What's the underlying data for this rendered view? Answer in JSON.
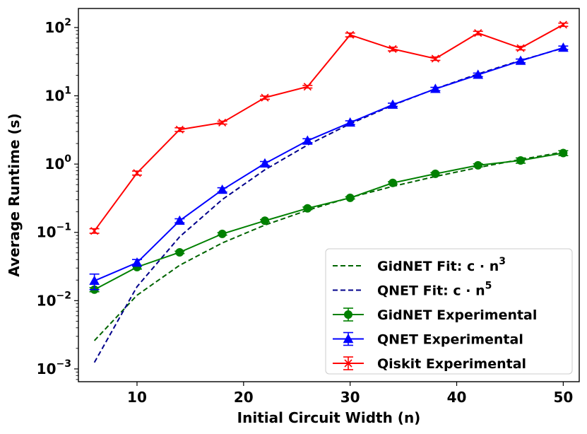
{
  "chart_data": {
    "type": "line",
    "title": "",
    "xlabel": "Initial Circuit Width (n)",
    "ylabel": "Average Runtime (s)",
    "yscale": "log",
    "xlim": [
      4.5,
      51.5
    ],
    "ylim": [
      0.00065,
      190
    ],
    "xticks": [
      10,
      20,
      30,
      40,
      50
    ],
    "yticks": [
      {
        "value": 0.001,
        "base": "10",
        "exp": "−3"
      },
      {
        "value": 0.01,
        "base": "10",
        "exp": "−2"
      },
      {
        "value": 0.1,
        "base": "10",
        "exp": "−1"
      },
      {
        "value": 1,
        "base": "10",
        "exp": "0"
      },
      {
        "value": 10,
        "base": "10",
        "exp": "1"
      },
      {
        "value": 100,
        "base": "10",
        "exp": "2"
      }
    ],
    "legend_position": "lower-right",
    "series": [
      {
        "name": "GidNET Fit",
        "legend_main": "GidNET Fit: c",
        "legend_dot": "·",
        "legend_n": "n",
        "legend_exp": "3",
        "kind": "fit",
        "color": "#006400",
        "coef": 1.2e-05,
        "power": 3,
        "x": [
          6,
          10,
          14,
          18,
          22,
          26,
          30,
          34,
          38,
          42,
          46,
          50
        ]
      },
      {
        "name": "QNET Fit",
        "legend_main": "QNET Fit: c",
        "legend_dot": "·",
        "legend_n": "n",
        "legend_exp": "5",
        "kind": "fit",
        "color": "#00008b",
        "coef": 1.6e-07,
        "power": 5,
        "x": [
          6,
          10,
          14,
          18,
          22,
          26,
          30,
          34,
          38,
          42,
          46,
          50
        ]
      },
      {
        "name": "GidNET Experimental",
        "kind": "experimental",
        "marker": "circle",
        "color": "#008000",
        "x": [
          6,
          10,
          14,
          18,
          22,
          26,
          30,
          34,
          38,
          42,
          46,
          50
        ],
        "y": [
          0.0145,
          0.031,
          0.051,
          0.095,
          0.148,
          0.225,
          0.32,
          0.53,
          0.72,
          0.96,
          1.13,
          1.45
        ],
        "err": [
          0.001,
          0.002,
          0.002,
          0.004,
          0.006,
          0.01,
          0.012,
          0.02,
          0.03,
          0.05,
          0.1,
          0.12
        ]
      },
      {
        "name": "QNET Experimental",
        "kind": "experimental",
        "marker": "triangle",
        "color": "#0000ff",
        "x": [
          6,
          10,
          14,
          18,
          22,
          26,
          30,
          34,
          38,
          42,
          46,
          50
        ],
        "y": [
          0.0195,
          0.036,
          0.148,
          0.42,
          1.02,
          2.2,
          4.05,
          7.4,
          12.6,
          20.3,
          32.5,
          50.5
        ],
        "err": [
          0.005,
          0.004,
          0.01,
          0.03,
          0.07,
          0.15,
          0.25,
          0.4,
          0.7,
          1.2,
          2,
          3
        ]
      },
      {
        "name": "Qiskit Experimental",
        "kind": "experimental",
        "marker": "x",
        "color": "#ff0000",
        "x": [
          6,
          10,
          14,
          18,
          22,
          26,
          30,
          34,
          38,
          42,
          46,
          50
        ],
        "y": [
          0.105,
          0.74,
          3.2,
          4.05,
          9.4,
          13.6,
          78,
          48.5,
          35,
          83,
          50,
          110
        ],
        "err": [
          0.008,
          0.05,
          0.2,
          0.2,
          0.5,
          0.6,
          5,
          3,
          2,
          5,
          3,
          6
        ]
      }
    ]
  }
}
